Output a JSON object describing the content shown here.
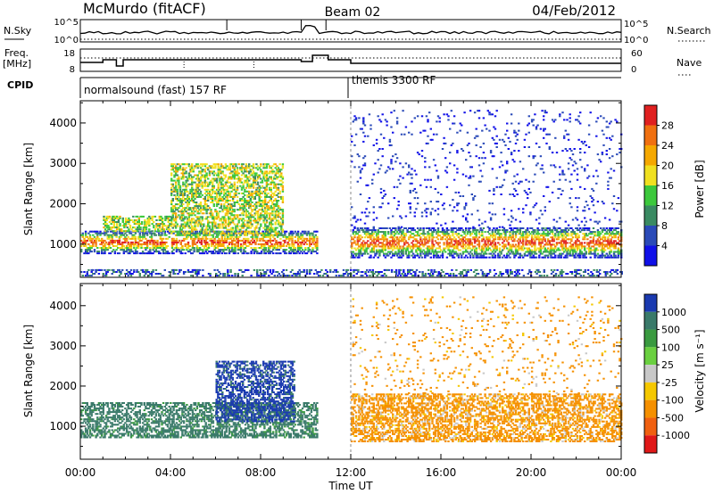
{
  "header": {
    "station": "McMurdo (fitACF)",
    "beam": "Beam 02",
    "date": "04/Feb/2012"
  },
  "summary_panels": {
    "nsky": {
      "label": "N.Sky",
      "scale_top": "10^5",
      "scale_bottom": "10^0"
    },
    "nsearch": {
      "label": "N.Search",
      "scale_top": "10^5",
      "scale_bottom": "10^0"
    },
    "freq": {
      "label_line1": "Freq.",
      "label_line2": "[MHz]",
      "scale_top": "18",
      "scale_bottom": "8"
    },
    "nave": {
      "label": "Nave",
      "scale_top": "60",
      "scale_bottom": "0"
    },
    "cpid": {
      "label": "CPID",
      "segments": [
        {
          "text": "normalsound (fast) 157 RF",
          "start_hour": 0
        },
        {
          "text": "themis 3300 RF",
          "start_hour": 12
        }
      ]
    }
  },
  "chart_data": [
    {
      "type": "heatmap",
      "name": "power-panel",
      "ylabel": "Slant Range [km]",
      "xlabel": "",
      "xlim": [
        0,
        24
      ],
      "ylim": [
        180,
        4550
      ],
      "yticks": [
        1000,
        2000,
        3000,
        4000
      ],
      "xticks_hours": [
        0,
        4,
        8,
        12,
        16,
        20,
        24
      ],
      "colorbar": {
        "label": "Power [dB]",
        "ticks": [
          "4",
          "8",
          "12",
          "16",
          "20",
          "24",
          "28"
        ],
        "range": [
          0,
          30
        ],
        "colors": [
          "#1010e8",
          "#2a4ab8",
          "#3a8a62",
          "#3cc83c",
          "#f0e020",
          "#f5a800",
          "#f07010",
          "#e02020"
        ]
      },
      "scatter_regions": [
        {
          "t0": 0.0,
          "t1": 10.5,
          "r0": 750,
          "r1": 1300,
          "level": "high"
        },
        {
          "t0": 1.0,
          "t1": 4.0,
          "r0": 1300,
          "r1": 1700,
          "level": "mid"
        },
        {
          "t0": 4.0,
          "t1": 9.0,
          "r0": 1200,
          "r1": 3000,
          "level": "mid"
        },
        {
          "t0": 12.0,
          "t1": 24.0,
          "r0": 650,
          "r1": 1400,
          "level": "high"
        },
        {
          "t0": 12.0,
          "t1": 24.0,
          "r0": 1400,
          "r1": 4300,
          "level": "sparse"
        },
        {
          "t0": 0.0,
          "t1": 24.0,
          "r0": 200,
          "r1": 350,
          "level": "low"
        }
      ]
    },
    {
      "type": "heatmap",
      "name": "velocity-panel",
      "ylabel": "Slant Range [km]",
      "xlabel": "Time UT",
      "xlim": [
        0,
        24
      ],
      "ylim": [
        180,
        4550
      ],
      "yticks": [
        1000,
        2000,
        3000,
        4000
      ],
      "xticks_hours": [
        0,
        4,
        8,
        12,
        16,
        20,
        24
      ],
      "xtick_labels": [
        "00:00",
        "04:00",
        "08:00",
        "12:00",
        "16:00",
        "20:00",
        "00:00"
      ],
      "colorbar": {
        "label": "Velocity  [m s⁻¹]",
        "ticks": [
          "1000",
          "500",
          "100",
          "25",
          "-25",
          "-100",
          "-500",
          "-1000"
        ],
        "colors": [
          "#1a3ab0",
          "#3a7a6a",
          "#3a9a40",
          "#6ad040",
          "#c8c8c8",
          "#f5c800",
          "#f59000",
          "#f06010",
          "#e01818"
        ]
      },
      "scatter_regions": [
        {
          "t0": 0.0,
          "t1": 10.5,
          "r0": 700,
          "r1": 1600,
          "velocity_class": "500"
        },
        {
          "t0": 6.0,
          "t1": 9.5,
          "r0": 1100,
          "r1": 2600,
          "velocity_class": "1000"
        },
        {
          "t0": 12.0,
          "t1": 24.0,
          "r0": 600,
          "r1": 1800,
          "velocity_class": "-100"
        },
        {
          "t0": 12.0,
          "t1": 24.0,
          "r0": 1800,
          "r1": 4200,
          "velocity_class": "-100 sparse"
        }
      ]
    }
  ]
}
